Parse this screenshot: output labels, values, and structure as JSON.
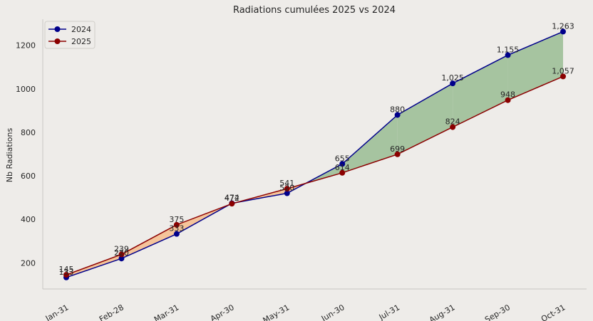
{
  "chart_data": {
    "type": "line",
    "title": "Radiations cumulées 2025 vs 2024",
    "xlabel": "",
    "ylabel": "Nb Radiations",
    "categories": [
      "Jan-31",
      "Feb-28",
      "Mar-31",
      "Apr-30",
      "May-31",
      "Jun-30",
      "Jul-31",
      "Aug-31",
      "Sep-30",
      "Oct-31"
    ],
    "series": [
      {
        "name": "2024",
        "color": "#00008b",
        "values": [
          133,
          220,
          333,
          474,
          520,
          655,
          880,
          1025,
          1155,
          1263
        ],
        "labels": [
          "133",
          "220",
          "333",
          "474",
          "520",
          "655",
          "880",
          "1,025",
          "1,155",
          "1,263"
        ]
      },
      {
        "name": "2025",
        "color": "#8b0000",
        "values": [
          145,
          239,
          375,
          472,
          541,
          614,
          699,
          824,
          948,
          1057
        ],
        "labels": [
          "145",
          "239",
          "375",
          "472",
          "541",
          "614",
          "699",
          "824",
          "948",
          "1,057"
        ]
      }
    ],
    "fill_colors": {
      "series2_above": "#f5c49a",
      "series1_above": "#a6c4a0"
    },
    "yticks": [
      200,
      400,
      600,
      800,
      1000,
      1200
    ],
    "ylim": [
      80,
      1320
    ],
    "grid": false,
    "legend_position": "top-left"
  }
}
